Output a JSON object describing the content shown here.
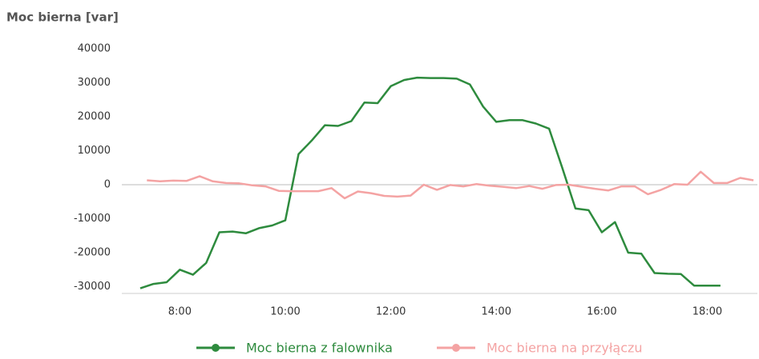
{
  "chart_data": {
    "type": "line",
    "title": "Moc bierna [var]",
    "xlim": [
      6.9,
      18.95
    ],
    "xticks": [
      {
        "value": 8,
        "label": "8:00"
      },
      {
        "value": 10,
        "label": "10:00"
      },
      {
        "value": 12,
        "label": "12:00"
      },
      {
        "value": 14,
        "label": "14:00"
      },
      {
        "value": 16,
        "label": "16:00"
      },
      {
        "value": 18,
        "label": "18:00"
      }
    ],
    "ylim": [
      -32000,
      40000
    ],
    "yticks": [
      40000,
      30000,
      20000,
      10000,
      0,
      -10000,
      -20000,
      -30000
    ],
    "grid": false,
    "legend": "bottom",
    "series": [
      {
        "name": "Moc bierna z falownika",
        "color": "#2e8b3e",
        "x": [
          7.25,
          7.5,
          7.75,
          8,
          8.25,
          8.5,
          8.75,
          9,
          9.25,
          9.5,
          9.75,
          10,
          10.25,
          10.5,
          10.75,
          11,
          11.25,
          11.5,
          11.75,
          12,
          12.25,
          12.5,
          12.75,
          13,
          13.25,
          13.5,
          13.75,
          14,
          14.25,
          14.5,
          14.75,
          15,
          15.25,
          15.5,
          15.75,
          16,
          16.25,
          16.5,
          16.75,
          17,
          17.25,
          17.5,
          17.75,
          18,
          18.25
        ],
        "values": [
          -30500,
          -29200,
          -28700,
          -25000,
          -26500,
          -23000,
          -14000,
          -13800,
          -14300,
          -12800,
          -12000,
          -10500,
          9000,
          13000,
          17500,
          17300,
          18700,
          24200,
          24000,
          29000,
          30800,
          31500,
          31400,
          31400,
          31200,
          29500,
          23000,
          18500,
          19000,
          19000,
          18000,
          16500,
          5000,
          -7000,
          -7500,
          -14000,
          -11000,
          -20000,
          -20300,
          -26000,
          -26200,
          -26300,
          -29700,
          -29700,
          -29700
        ]
      },
      {
        "name": "Moc bierna na przyłączu",
        "color": "#f4a3a3",
        "x": [
          7.375,
          7.625,
          7.875,
          8.125,
          8.375,
          8.625,
          8.875,
          9.125,
          9.375,
          9.625,
          9.875,
          10.125,
          10.375,
          10.625,
          10.875,
          11.125,
          11.375,
          11.625,
          11.875,
          12.125,
          12.375,
          12.625,
          12.875,
          13.125,
          13.375,
          13.625,
          13.875,
          14.125,
          14.375,
          14.625,
          14.875,
          15.125,
          15.375,
          15.625,
          15.875,
          16.125,
          16.375,
          16.625,
          16.875,
          17.125,
          17.375,
          17.625,
          17.875,
          18.125,
          18.375,
          18.625,
          18.875
        ],
        "values": [
          1300,
          1000,
          1200,
          1100,
          2500,
          1000,
          500,
          400,
          -200,
          -500,
          -1800,
          -1900,
          -1900,
          -1900,
          -1000,
          -4000,
          -2000,
          -2500,
          -3300,
          -3500,
          -3200,
          0,
          -1500,
          -100,
          -500,
          200,
          -300,
          -600,
          -1000,
          -400,
          -1200,
          -100,
          0,
          -600,
          -1200,
          -1700,
          -500,
          -500,
          -2800,
          -1500,
          200,
          0,
          3800,
          500,
          500,
          2000,
          1300
        ]
      }
    ]
  }
}
